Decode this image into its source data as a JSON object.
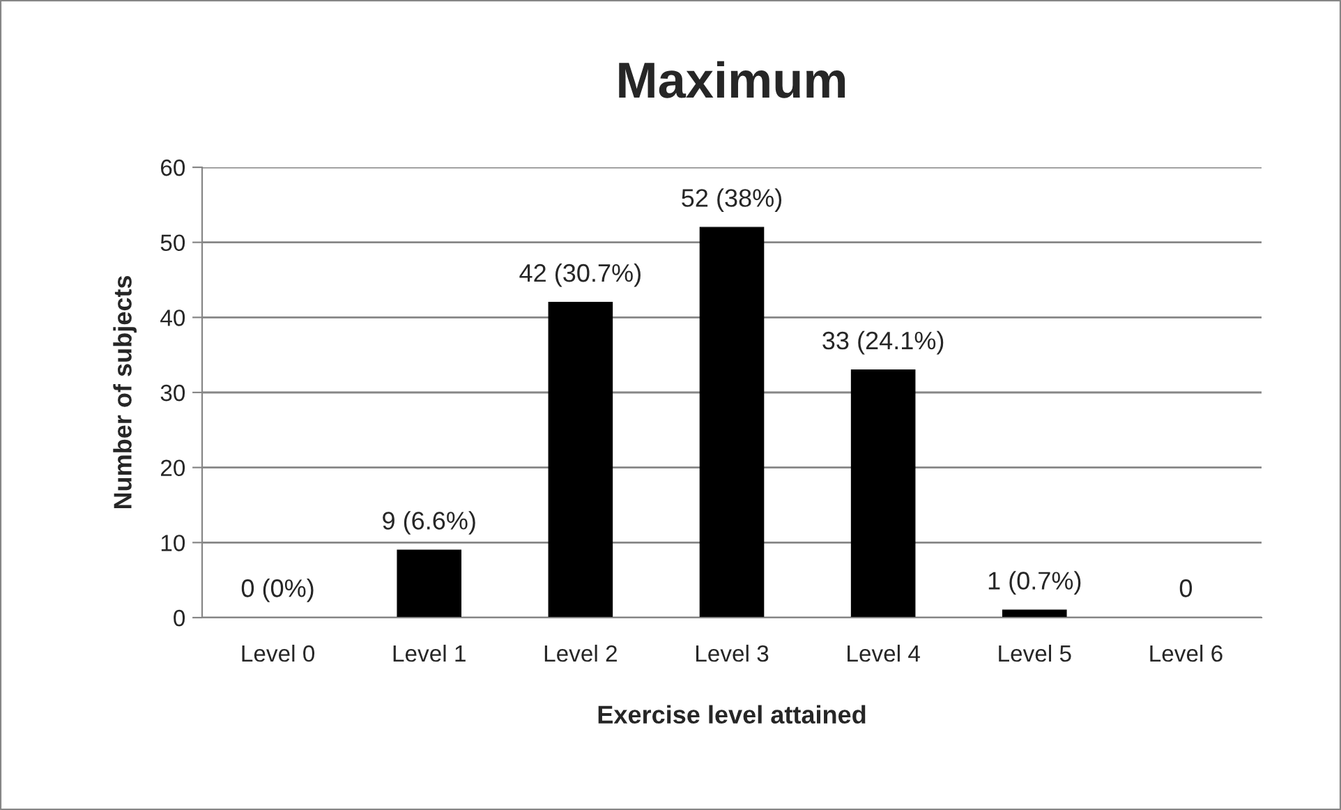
{
  "chart_data": {
    "type": "bar",
    "title": "Maximum",
    "xlabel": "Exercise level attained",
    "ylabel": "Number of subjects",
    "categories": [
      "Level 0",
      "Level 1",
      "Level 2",
      "Level 3",
      "Level 4",
      "Level 5",
      "Level 6"
    ],
    "values": [
      0,
      9,
      42,
      52,
      33,
      1,
      0
    ],
    "color": "#000000",
    "value_labels": [
      "0 (0%)",
      "9 (6.6%)",
      "42 (30.7%)",
      "52 (38%)",
      "33 (24.1%)",
      "1 (0.7%)",
      "0"
    ],
    "ylim": [
      0,
      60
    ],
    "yticks": [
      0,
      10,
      20,
      30,
      40,
      50,
      60
    ],
    "grid": "y",
    "legend": false
  }
}
